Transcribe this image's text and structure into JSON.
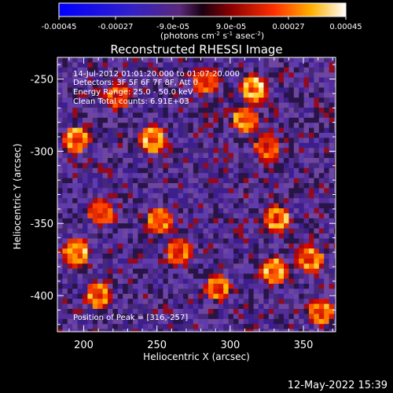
{
  "chart_data": {
    "type": "heatmap",
    "title": "Reconstructed RHESSI Image",
    "xlabel": "Heliocentric X (arcsec)",
    "ylabel": "Heliocentric Y (arcsec)",
    "xlim": [
      182,
      372
    ],
    "ylim": [
      -425,
      -235
    ],
    "x_ticks": [
      200,
      250,
      300,
      350
    ],
    "y_ticks": [
      -400,
      -350,
      -300,
      -250
    ],
    "colorbar": {
      "range": [
        -0.00045,
        0.00045
      ],
      "tick_labels": [
        "-0.00045",
        "-0.00027",
        "-9.0e-05",
        "9.0e-05",
        "0.00027",
        "0.00045"
      ],
      "unit_text": "(photons cm",
      "unit_exp1": "-2",
      "unit_mid": " s",
      "unit_exp2": "-1",
      "unit_mid2": " asec",
      "unit_exp3": "-2",
      "unit_close": ")",
      "colormap": "rhessi-blue-purple-red-yellow-white"
    },
    "annotations": {
      "time_range": "14-Jul-2012 01:01:20.000 to 01:07:20.000",
      "detectors": "Detectors: 3F 5F 6F 7F 8F, Att 0",
      "energy": "Energy Range: 25.0 - 50.0 keV",
      "clean": "Clean    Total counts: 6.91E+03",
      "peak": "Position of Peak = [316,-257]"
    },
    "peak": {
      "x": 316,
      "y": -257
    },
    "bright_sources": [
      {
        "x": 316,
        "y": -257,
        "strength": 1.0
      },
      {
        "x": 310,
        "y": -278,
        "strength": 0.75
      },
      {
        "x": 223,
        "y": -262,
        "strength": 0.6
      },
      {
        "x": 195,
        "y": -292,
        "strength": 0.8
      },
      {
        "x": 247,
        "y": -292,
        "strength": 0.9
      },
      {
        "x": 325,
        "y": -297,
        "strength": 0.6
      },
      {
        "x": 212,
        "y": -343,
        "strength": 0.7
      },
      {
        "x": 252,
        "y": -348,
        "strength": 0.8
      },
      {
        "x": 332,
        "y": -347,
        "strength": 0.85
      },
      {
        "x": 195,
        "y": -370,
        "strength": 0.85
      },
      {
        "x": 210,
        "y": -400,
        "strength": 0.75
      },
      {
        "x": 265,
        "y": -370,
        "strength": 0.7
      },
      {
        "x": 330,
        "y": -383,
        "strength": 0.85
      },
      {
        "x": 292,
        "y": -395,
        "strength": 0.7
      },
      {
        "x": 355,
        "y": -375,
        "strength": 0.75
      },
      {
        "x": 362,
        "y": -412,
        "strength": 0.7
      },
      {
        "x": 283,
        "y": -252,
        "strength": 0.6
      }
    ]
  },
  "footer_date": "12-May-2022 15:39"
}
